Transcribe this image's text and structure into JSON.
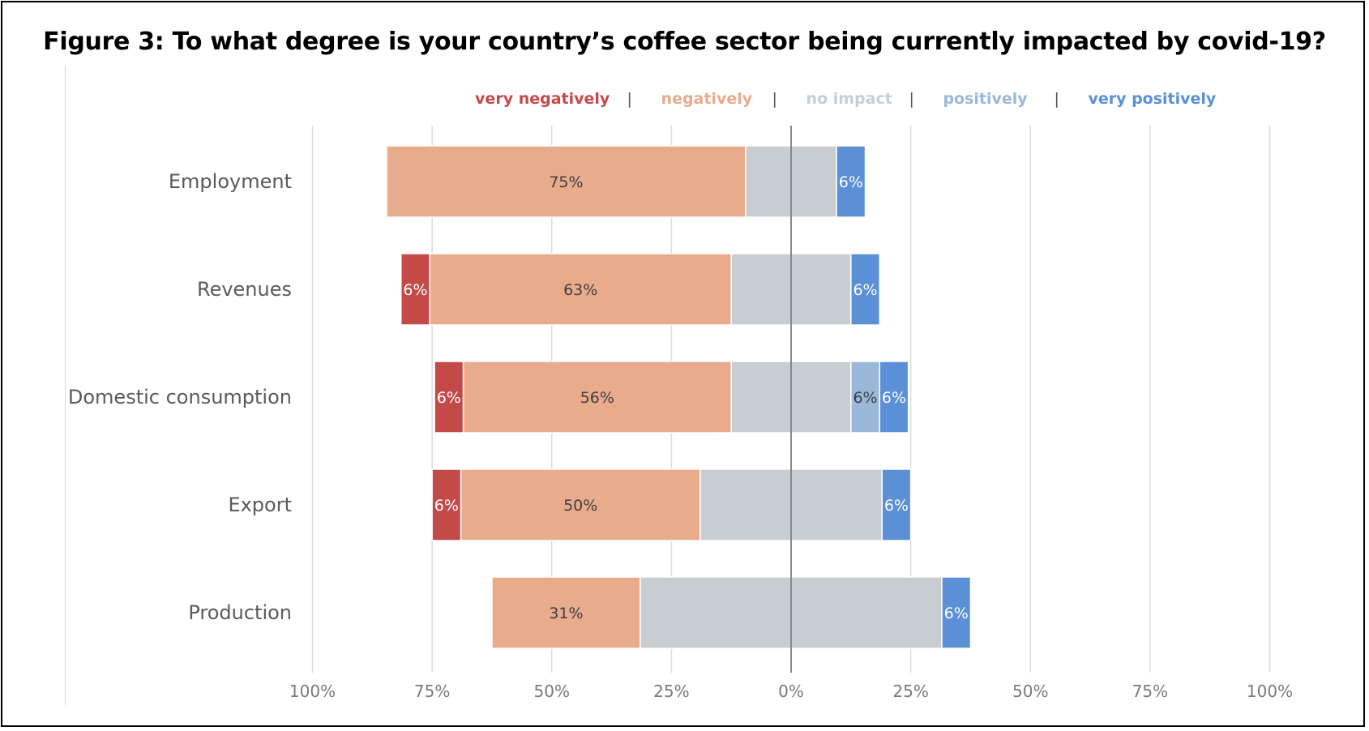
{
  "title": "Figure 3: To what degree is your country’s coffee sector being currently impacted by covid-19?",
  "chart_data": {
    "type": "bar",
    "orientation": "horizontal-diverging-stacked",
    "categories": [
      "Employment",
      "Revenues",
      "Domestic consumption",
      "Export",
      "Production"
    ],
    "series": [
      {
        "name": "very negatively",
        "color": "#c44a4a",
        "side": "negative",
        "values": [
          0,
          6,
          6,
          6,
          0
        ]
      },
      {
        "name": "negatively",
        "color": "#e8ab8c",
        "side": "negative",
        "values": [
          75,
          63,
          56,
          50,
          31
        ]
      },
      {
        "name": "no impact",
        "color": "#c8cdd1",
        "side": "center",
        "values": [
          19,
          25,
          25,
          38,
          63
        ]
      },
      {
        "name": "positively",
        "color": "#9ab9da",
        "side": "positive",
        "values": [
          0,
          0,
          6,
          0,
          0
        ]
      },
      {
        "name": "very positively",
        "color": "#5b8fd6",
        "side": "positive",
        "values": [
          6,
          6,
          6,
          6,
          6
        ]
      }
    ],
    "data_labels": [
      {
        "category": "Employment",
        "series": "negatively",
        "text": "75%"
      },
      {
        "category": "Employment",
        "series": "very positively",
        "text": "6%"
      },
      {
        "category": "Revenues",
        "series": "very negatively",
        "text": "6%"
      },
      {
        "category": "Revenues",
        "series": "negatively",
        "text": "63%"
      },
      {
        "category": "Revenues",
        "series": "very positively",
        "text": "6%"
      },
      {
        "category": "Domestic consumption",
        "series": "very negatively",
        "text": "6%"
      },
      {
        "category": "Domestic consumption",
        "series": "negatively",
        "text": "56%"
      },
      {
        "category": "Domestic consumption",
        "series": "positively",
        "text": "6%"
      },
      {
        "category": "Domestic consumption",
        "series": "very positively",
        "text": "6%"
      },
      {
        "category": "Export",
        "series": "very negatively",
        "text": "6%"
      },
      {
        "category": "Export",
        "series": "negatively",
        "text": "50%"
      },
      {
        "category": "Export",
        "series": "very positively",
        "text": "6%"
      },
      {
        "category": "Production",
        "series": "negatively",
        "text": "31%"
      },
      {
        "category": "Production",
        "series": "very positively",
        "text": "6%"
      }
    ],
    "x_ticks": [
      -100,
      -75,
      -50,
      -25,
      0,
      25,
      50,
      75,
      100
    ],
    "x_tick_labels": [
      "100%",
      "75%",
      "50%",
      "25%",
      "0%",
      "25%",
      "50%",
      "75%",
      "100%"
    ],
    "xlim": [
      -100,
      100
    ],
    "grid": true,
    "legend_placement": "top-center",
    "legend_separator": "|"
  }
}
